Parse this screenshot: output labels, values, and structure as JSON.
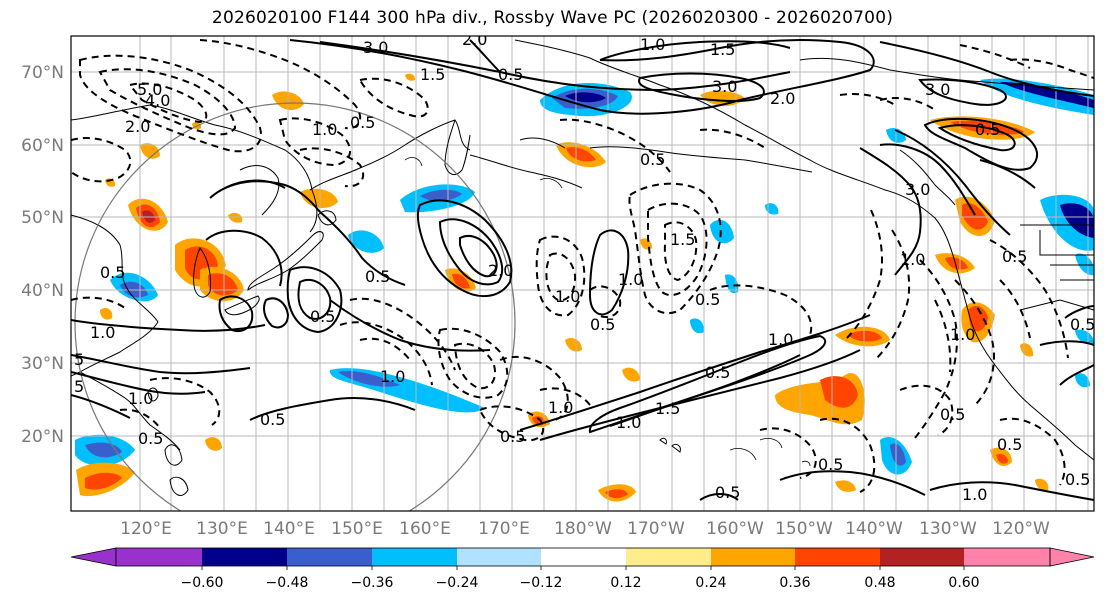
{
  "title": "2026020100 F144 300 hPa div., Rossby Wave PC (2026020300 - 2026020700)",
  "map": {
    "lat_labels": [
      "70°N",
      "60°N",
      "50°N",
      "40°N",
      "30°N",
      "20°N"
    ],
    "lon_labels": [
      "120°E",
      "130°E",
      "140°E",
      "150°E",
      "160°E",
      "170°E",
      "180°W",
      "170°W",
      "160°W",
      "150°W",
      "140°W",
      "130°W",
      "120°W"
    ]
  },
  "colorbar": {
    "ticks": [
      "−0.60",
      "−0.48",
      "−0.36",
      "−0.24",
      "−0.12",
      "0.12",
      "0.24",
      "0.36",
      "0.48",
      "0.60"
    ],
    "colors": [
      "#9932cc",
      "#00008b",
      "#3a5fcd",
      "#00bfff",
      "#b0e2ff",
      "#ffffff",
      "#ffec8b",
      "#ffa500",
      "#ff4500",
      "#b22222",
      "#ff82ab"
    ]
  },
  "contour_labels": [
    {
      "text": "3.0"
    },
    {
      "text": "2.0"
    },
    {
      "text": "1.5"
    },
    {
      "text": "0.5"
    },
    {
      "text": "1.0"
    },
    {
      "text": "1.5"
    },
    {
      "text": "3.0"
    },
    {
      "text": "2.0"
    },
    {
      "text": "3.0"
    },
    {
      "text": "0.5"
    },
    {
      "text": "5.0"
    },
    {
      "text": "4.0"
    },
    {
      "text": "2.0"
    },
    {
      "text": "1.0"
    },
    {
      "text": "0.5"
    },
    {
      "text": "0.5"
    },
    {
      "text": "3.0"
    },
    {
      "text": "1.0"
    },
    {
      "text": "0.5"
    },
    {
      "text": "0.5"
    },
    {
      "text": "2.0"
    },
    {
      "text": "1.0"
    },
    {
      "text": "0.5"
    },
    {
      "text": "1.5"
    },
    {
      "text": "1.0"
    },
    {
      "text": "0.5"
    },
    {
      "text": "1.0"
    },
    {
      "text": "0.5"
    },
    {
      "text": "1.0"
    },
    {
      "text": "0.5"
    },
    {
      "text": "1.0"
    },
    {
      "text": "0.5"
    },
    {
      "text": "1.0"
    },
    {
      "text": "1.5"
    },
    {
      "text": "0.5"
    },
    {
      "text": "1.0"
    },
    {
      "text": "0.5"
    },
    {
      "text": "0.5"
    },
    {
      "text": "0.5"
    },
    {
      "text": "0.5"
    },
    {
      "text": "1.0"
    },
    {
      "text": "0.5"
    },
    {
      "text": "0.5"
    },
    {
      "text": "1.0"
    },
    {
      "text": "0.5"
    },
    {
      "text": "1.0"
    },
    {
      "text": "0.5"
    },
    {
      "text": "5"
    },
    {
      "text": "5"
    }
  ]
}
